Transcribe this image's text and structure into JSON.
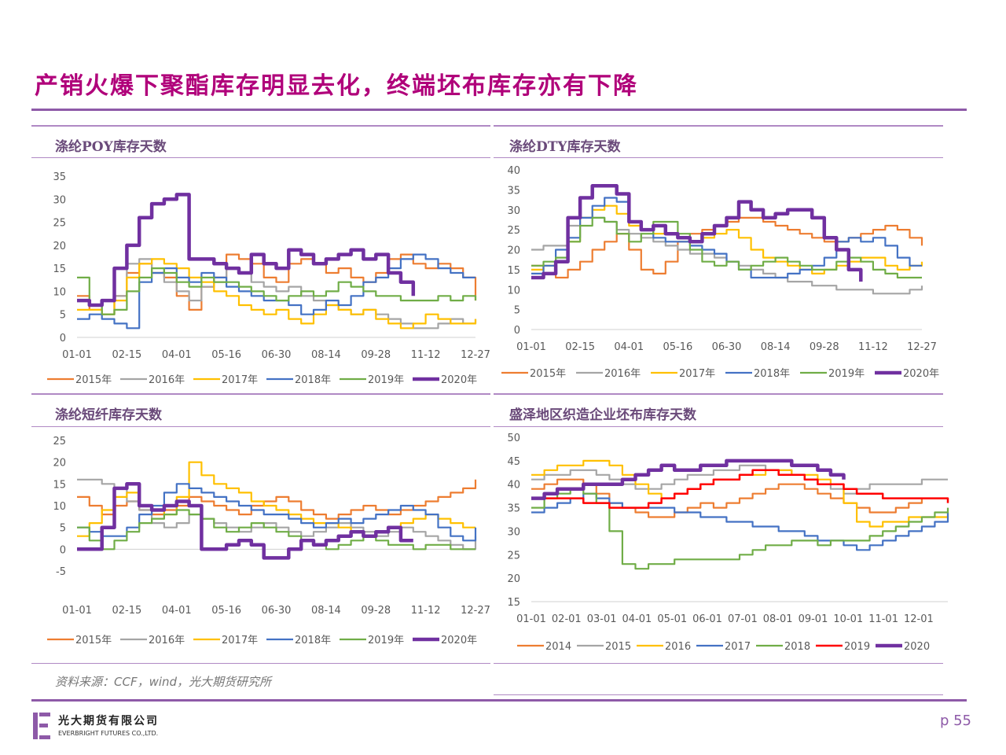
{
  "slide": {
    "title": "产销火爆下聚酯库存明显去化，终端坯布库存亦有下降",
    "source": "资料来源：CCF，wind，光大期货研究所",
    "page": "p 55",
    "logo_cn": "光大期货有限公司",
    "logo_en": "EVERBRIGHT FUTURES CO.,LTD."
  },
  "colors": {
    "accent": "#8e5aa8",
    "title": "#b0007a"
  },
  "chart_data": [
    {
      "id": "poy",
      "type": "line",
      "title": "涤纶POY库存天数",
      "ylim": [
        0,
        35
      ],
      "yticks": [
        "0",
        "5",
        "10",
        "15",
        "20",
        "25",
        "30",
        "35"
      ],
      "xticks": [
        "01-01",
        "02-15",
        "04-01",
        "05-16",
        "06-30",
        "08-14",
        "09-28",
        "11-12",
        "12-27"
      ],
      "series": [
        {
          "name": "2015年",
          "color": "#ed7d31",
          "width": 2.2,
          "values": [
            9,
            6,
            5,
            9,
            14,
            16,
            14,
            13,
            9,
            6,
            11,
            13,
            18,
            17,
            16,
            13,
            12,
            16,
            17,
            16,
            14,
            15,
            13,
            12,
            14,
            17,
            18,
            16,
            15,
            16,
            15,
            13,
            8
          ]
        },
        {
          "name": "2016年",
          "color": "#a5a5a5",
          "width": 2.2,
          "values": [
            8,
            7,
            5,
            9,
            16,
            17,
            14,
            12,
            10,
            8,
            11,
            12,
            15,
            14,
            12,
            11,
            10,
            11,
            9,
            8,
            7,
            6,
            5,
            6,
            5,
            4,
            3,
            2,
            2,
            3,
            4,
            3,
            4
          ]
        },
        {
          "name": "2017年",
          "color": "#ffc000",
          "width": 2.2,
          "values": [
            6,
            6,
            5,
            8,
            13,
            16,
            17,
            16,
            15,
            13,
            12,
            10,
            9,
            7,
            6,
            5,
            6,
            4,
            3,
            5,
            7,
            6,
            5,
            6,
            4,
            3,
            2,
            3,
            5,
            4,
            3,
            3,
            4
          ]
        },
        {
          "name": "2018年",
          "color": "#4472c4",
          "width": 2.2,
          "values": [
            4,
            5,
            4,
            3,
            2,
            12,
            14,
            15,
            13,
            12,
            14,
            13,
            11,
            10,
            9,
            8,
            8,
            7,
            5,
            6,
            8,
            7,
            9,
            12,
            13,
            15,
            17,
            18,
            17,
            15,
            14,
            13,
            13
          ]
        },
        {
          "name": "2019年",
          "color": "#70ad47",
          "width": 2.2,
          "values": [
            13,
            7,
            5,
            6,
            10,
            13,
            15,
            14,
            12,
            11,
            13,
            12,
            12,
            11,
            10,
            9,
            8,
            9,
            10,
            9,
            10,
            12,
            11,
            10,
            9,
            9,
            8,
            8,
            8,
            9,
            8,
            9,
            8
          ]
        },
        {
          "name": "2020年",
          "color": "#7030a0",
          "width": 4.5,
          "values": [
            8,
            7,
            8,
            15,
            20,
            26,
            29,
            30,
            31,
            17,
            17,
            16,
            15,
            14,
            18,
            16,
            15,
            19,
            18,
            16,
            17,
            18,
            19,
            17,
            18,
            14,
            12,
            9,
            null,
            null,
            null,
            null,
            null
          ]
        }
      ]
    },
    {
      "id": "dty",
      "type": "line",
      "title": "涤纶DTY库存天数",
      "ylim": [
        0,
        40
      ],
      "yticks": [
        "0",
        "5",
        "10",
        "15",
        "20",
        "25",
        "30",
        "35",
        "40"
      ],
      "xticks": [
        "01-01",
        "02-15",
        "04-01",
        "05-16",
        "06-30",
        "08-14",
        "09-28",
        "11-12",
        "12-27"
      ],
      "series": [
        {
          "name": "2015年",
          "color": "#ed7d31",
          "width": 2.2,
          "values": [
            16,
            14,
            13,
            15,
            17,
            20,
            22,
            24,
            20,
            15,
            14,
            17,
            22,
            24,
            25,
            26,
            27,
            28,
            28,
            27,
            26,
            25,
            24,
            23,
            22,
            22,
            23,
            24,
            25,
            26,
            25,
            23,
            21
          ]
        },
        {
          "name": "2016年",
          "color": "#a5a5a5",
          "width": 2.2,
          "values": [
            20,
            21,
            21,
            26,
            28,
            28,
            27,
            25,
            24,
            23,
            22,
            21,
            20,
            19,
            19,
            18,
            17,
            16,
            15,
            14,
            13,
            12,
            12,
            11,
            11,
            10,
            10,
            10,
            9,
            9,
            9,
            10,
            11
          ]
        },
        {
          "name": "2017年",
          "color": "#ffc000",
          "width": 2.2,
          "values": [
            15,
            16,
            17,
            22,
            28,
            30,
            31,
            29,
            26,
            25,
            24,
            24,
            23,
            22,
            23,
            24,
            25,
            23,
            20,
            18,
            17,
            16,
            15,
            14,
            15,
            16,
            17,
            18,
            18,
            16,
            15,
            16,
            17
          ]
        },
        {
          "name": "2018年",
          "color": "#4472c4",
          "width": 2.2,
          "values": [
            14,
            16,
            20,
            23,
            28,
            31,
            33,
            32,
            27,
            25,
            23,
            22,
            22,
            21,
            20,
            19,
            17,
            15,
            13,
            13,
            13,
            14,
            15,
            16,
            18,
            22,
            23,
            22,
            23,
            21,
            18,
            16,
            16
          ]
        },
        {
          "name": "2019年",
          "color": "#70ad47",
          "width": 2.2,
          "values": [
            16,
            17,
            18,
            22,
            26,
            28,
            27,
            24,
            22,
            24,
            27,
            27,
            24,
            20,
            17,
            16,
            17,
            15,
            16,
            17,
            18,
            17,
            16,
            15,
            15,
            17,
            18,
            17,
            15,
            14,
            13,
            13,
            13
          ]
        },
        {
          "name": "2020年",
          "color": "#7030a0",
          "width": 4.5,
          "values": [
            13,
            14,
            17,
            28,
            33,
            36,
            36,
            34,
            27,
            25,
            26,
            24,
            23,
            22,
            24,
            26,
            28,
            32,
            30,
            28,
            29,
            30,
            30,
            28,
            23,
            20,
            15,
            12,
            null,
            null,
            null,
            null,
            null
          ]
        }
      ]
    },
    {
      "id": "psf",
      "type": "line",
      "title": "涤纶短纤库存天数",
      "ylim": [
        -5,
        25
      ],
      "yticks": [
        "-5",
        "0",
        "5",
        "10",
        "15",
        "20",
        "25"
      ],
      "xticks": [
        "01-01",
        "02-15",
        "04-01",
        "05-16",
        "06-30",
        "08-14",
        "09-28",
        "11-12",
        "12-27"
      ],
      "series": [
        {
          "name": "2015年",
          "color": "#ed7d31",
          "width": 2.2,
          "values": [
            12,
            10,
            8,
            10,
            11,
            9,
            8,
            9,
            10,
            12,
            11,
            10,
            9,
            8,
            10,
            11,
            12,
            11,
            9,
            8,
            7,
            8,
            9,
            10,
            9,
            8,
            9,
            10,
            11,
            12,
            13,
            14,
            16
          ]
        },
        {
          "name": "2016年",
          "color": "#a5a5a5",
          "width": 2.2,
          "values": [
            16,
            16,
            15,
            14,
            11,
            9,
            6,
            5,
            6,
            8,
            7,
            6,
            5,
            4,
            5,
            6,
            5,
            4,
            3,
            4,
            5,
            6,
            5,
            4,
            3,
            4,
            5,
            4,
            3,
            2,
            1,
            0,
            3
          ]
        },
        {
          "name": "2017年",
          "color": "#ffc000",
          "width": 2.2,
          "values": [
            3,
            6,
            9,
            12,
            13,
            10,
            9,
            8,
            12,
            20,
            17,
            15,
            14,
            13,
            11,
            10,
            9,
            8,
            7,
            6,
            6,
            5,
            4,
            3,
            4,
            5,
            6,
            7,
            8,
            7,
            6,
            5,
            5
          ]
        },
        {
          "name": "2018年",
          "color": "#4472c4",
          "width": 2.2,
          "values": [
            5,
            4,
            3,
            3,
            5,
            8,
            10,
            13,
            15,
            14,
            13,
            12,
            11,
            10,
            9,
            8,
            8,
            7,
            6,
            5,
            6,
            7,
            6,
            7,
            8,
            9,
            10,
            9,
            8,
            5,
            3,
            2,
            5
          ]
        },
        {
          "name": "2019年",
          "color": "#70ad47",
          "width": 2.2,
          "values": [
            5,
            2,
            0,
            2,
            4,
            6,
            7,
            8,
            9,
            8,
            7,
            5,
            4,
            5,
            6,
            5,
            4,
            3,
            2,
            1,
            0,
            1,
            2,
            3,
            2,
            1,
            1,
            0,
            1,
            1,
            0,
            0,
            0
          ]
        },
        {
          "name": "2020年",
          "color": "#7030a0",
          "width": 4.5,
          "values": [
            0,
            0,
            5,
            14,
            15,
            10,
            9,
            10,
            11,
            10,
            0,
            0,
            1,
            2,
            1,
            -2,
            -2,
            0,
            2,
            1,
            2,
            3,
            4,
            3,
            4,
            5,
            2,
            2,
            null,
            null,
            null,
            null,
            null
          ]
        }
      ]
    },
    {
      "id": "greige",
      "type": "line",
      "title": "盛泽地区织造企业坯布库存天数",
      "ylim": [
        15,
        50
      ],
      "yticks": [
        "15",
        "20",
        "25",
        "30",
        "35",
        "40",
        "45",
        "50"
      ],
      "xticks": [
        "01-01",
        "02-01",
        "03-01",
        "04-01",
        "05-01",
        "06-01",
        "07-01",
        "08-01",
        "09-01",
        "10-01",
        "11-01",
        "12-01"
      ],
      "series": [
        {
          "name": "2014",
          "color": "#ed7d31",
          "width": 2.2,
          "values": [
            39,
            40,
            41,
            41,
            40,
            38,
            36,
            35,
            34,
            33,
            33,
            34,
            35,
            36,
            35,
            36,
            37,
            38,
            39,
            40,
            40,
            39,
            38,
            37,
            36,
            35,
            34,
            34,
            35,
            36,
            37,
            37,
            37
          ]
        },
        {
          "name": "2015",
          "color": "#a5a5a5",
          "width": 2.2,
          "values": [
            41,
            42,
            42,
            43,
            43,
            42,
            41,
            40,
            39,
            39,
            40,
            41,
            42,
            42,
            43,
            43,
            44,
            44,
            43,
            43,
            42,
            41,
            40,
            39,
            38,
            39,
            40,
            40,
            40,
            40,
            41,
            41,
            41
          ]
        },
        {
          "name": "2016",
          "color": "#ffc000",
          "width": 2.2,
          "values": [
            42,
            43,
            44,
            44,
            45,
            45,
            44,
            42,
            40,
            38,
            37,
            38,
            39,
            40,
            41,
            41,
            42,
            42,
            43,
            43,
            42,
            42,
            41,
            40,
            36,
            32,
            31,
            32,
            32,
            33,
            33,
            33,
            34
          ]
        },
        {
          "name": "2017",
          "color": "#4472c4",
          "width": 2.2,
          "values": [
            34,
            35,
            36,
            37,
            38,
            37,
            36,
            35,
            35,
            35,
            35,
            34,
            34,
            33,
            33,
            32,
            32,
            31,
            31,
            30,
            30,
            29,
            28,
            28,
            27,
            26,
            27,
            28,
            29,
            30,
            31,
            32,
            34
          ]
        },
        {
          "name": "2018",
          "color": "#70ad47",
          "width": 2.2,
          "values": [
            35,
            37,
            38,
            39,
            38,
            36,
            30,
            23,
            22,
            23,
            23,
            24,
            24,
            24,
            24,
            24,
            25,
            26,
            27,
            27,
            28,
            28,
            27,
            28,
            28,
            28,
            29,
            30,
            31,
            32,
            33,
            34,
            35
          ]
        },
        {
          "name": "2019",
          "color": "#ff0000",
          "width": 2.5,
          "values": [
            37,
            37,
            37,
            37,
            36,
            36,
            35,
            35,
            35,
            36,
            37,
            38,
            39,
            40,
            41,
            41,
            42,
            43,
            43,
            42,
            42,
            41,
            40,
            40,
            39,
            38,
            38,
            37,
            37,
            37,
            37,
            37,
            36
          ]
        },
        {
          "name": "2020",
          "color": "#7030a0",
          "width": 4.5,
          "values": [
            37,
            38,
            39,
            39,
            40,
            40,
            40,
            41,
            42,
            43,
            44,
            43,
            43,
            44,
            44,
            45,
            45,
            45,
            45,
            45,
            44,
            44,
            43,
            42,
            41,
            null,
            null,
            null,
            null,
            null,
            null,
            null,
            null
          ]
        }
      ]
    }
  ]
}
